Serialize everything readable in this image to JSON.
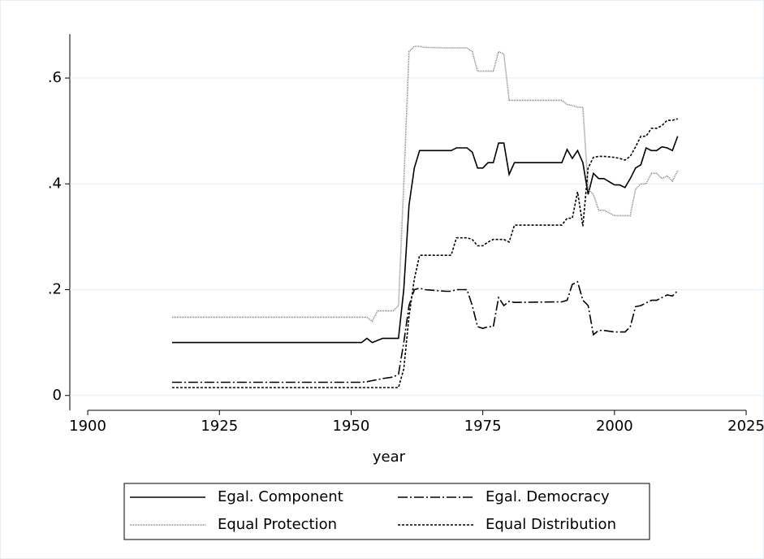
{
  "chart_data": {
    "type": "line",
    "xlabel": "year",
    "x": [
      1916,
      1952,
      1953,
      1954,
      1955,
      1956,
      1958,
      1959,
      1960,
      1961,
      1962,
      1963,
      1964,
      1968,
      1969,
      1970,
      1972,
      1973,
      1974,
      1975,
      1976,
      1977,
      1978,
      1979,
      1980,
      1981,
      1990,
      1991,
      1992,
      1993,
      1994,
      1995,
      1996,
      1997,
      1998,
      2000,
      2001,
      2002,
      2003,
      2004,
      2005,
      2006,
      2007,
      2008,
      2009,
      2010,
      2011,
      2012
    ],
    "series": [
      {
        "name": "Egal. Component",
        "color": "#000000",
        "dash": "none",
        "values": [
          0.1,
          0.1,
          0.108,
          0.1,
          0.104,
          0.108,
          0.108,
          0.108,
          0.2,
          0.36,
          0.43,
          0.463,
          0.463,
          0.463,
          0.463,
          0.468,
          0.468,
          0.46,
          0.43,
          0.43,
          0.44,
          0.44,
          0.477,
          0.477,
          0.418,
          0.44,
          0.44,
          0.465,
          0.448,
          0.463,
          0.44,
          0.38,
          0.42,
          0.41,
          0.41,
          0.398,
          0.398,
          0.393,
          0.41,
          0.43,
          0.436,
          0.468,
          0.463,
          0.463,
          0.47,
          0.468,
          0.463,
          0.49
        ]
      },
      {
        "name": "Egal. Democracy",
        "color": "#000000",
        "dash": "12,3,2,3",
        "values": [
          0.025,
          0.025,
          0.026,
          0.028,
          0.03,
          0.032,
          0.035,
          0.04,
          0.1,
          0.17,
          0.2,
          0.203,
          0.2,
          0.197,
          0.197,
          0.2,
          0.2,
          0.17,
          0.13,
          0.127,
          0.13,
          0.13,
          0.185,
          0.17,
          0.178,
          0.176,
          0.177,
          0.18,
          0.21,
          0.215,
          0.18,
          0.17,
          0.115,
          0.123,
          0.123,
          0.12,
          0.12,
          0.12,
          0.13,
          0.168,
          0.17,
          0.175,
          0.18,
          0.18,
          0.185,
          0.19,
          0.188,
          0.198
        ]
      },
      {
        "name": "Equal Protection",
        "color": "#808080",
        "dash": "1,1",
        "values": [
          0.148,
          0.148,
          0.148,
          0.14,
          0.16,
          0.16,
          0.16,
          0.17,
          0.4,
          0.65,
          0.66,
          0.66,
          0.658,
          0.657,
          0.657,
          0.657,
          0.657,
          0.65,
          0.613,
          0.613,
          0.613,
          0.613,
          0.65,
          0.645,
          0.558,
          0.558,
          0.558,
          0.55,
          0.548,
          0.545,
          0.545,
          0.39,
          0.38,
          0.35,
          0.35,
          0.34,
          0.34,
          0.34,
          0.34,
          0.39,
          0.4,
          0.4,
          0.42,
          0.42,
          0.41,
          0.415,
          0.405,
          0.425
        ]
      },
      {
        "name": "Equal Distribution",
        "color": "#000000",
        "dash": "3,2",
        "values": [
          0.015,
          0.015,
          0.015,
          0.015,
          0.015,
          0.015,
          0.015,
          0.015,
          0.05,
          0.15,
          0.22,
          0.265,
          0.265,
          0.265,
          0.265,
          0.298,
          0.298,
          0.295,
          0.283,
          0.283,
          0.29,
          0.295,
          0.295,
          0.295,
          0.29,
          0.322,
          0.322,
          0.335,
          0.335,
          0.385,
          0.32,
          0.43,
          0.45,
          0.452,
          0.452,
          0.45,
          0.448,
          0.445,
          0.452,
          0.47,
          0.49,
          0.49,
          0.505,
          0.505,
          0.51,
          0.52,
          0.52,
          0.523
        ]
      }
    ],
    "xlim": [
      1896.6,
      2029
    ],
    "ylim": [
      -0.028,
      0.683
    ],
    "xticks": [
      1900,
      1925,
      1950,
      1975,
      2000,
      2025
    ],
    "yticks": [
      0,
      {
        "value": 0.2,
        "label": ".2"
      },
      {
        "value": 0.4,
        "label": ".4"
      },
      {
        "value": 0.6,
        "label": ".6"
      }
    ],
    "grid": true
  }
}
